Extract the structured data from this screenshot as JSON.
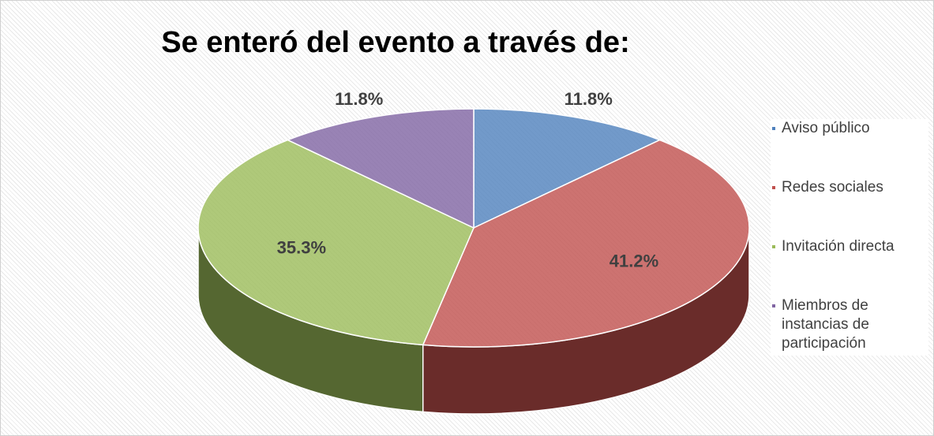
{
  "chart_data": {
    "type": "pie",
    "title": "Se enteró del evento a través de:",
    "categories": [
      "Aviso público",
      "Redes sociales",
      "Invitación directa",
      "Miembros de instancias de participación"
    ],
    "values": [
      11.8,
      41.2,
      35.3,
      11.8
    ],
    "value_labels": [
      "11.8%",
      "41.2%",
      "35.3%",
      "11.8%"
    ],
    "colors": [
      "#4f81bd",
      "#c0504d",
      "#9bbb59",
      "#8064a2"
    ],
    "legend": "right"
  }
}
